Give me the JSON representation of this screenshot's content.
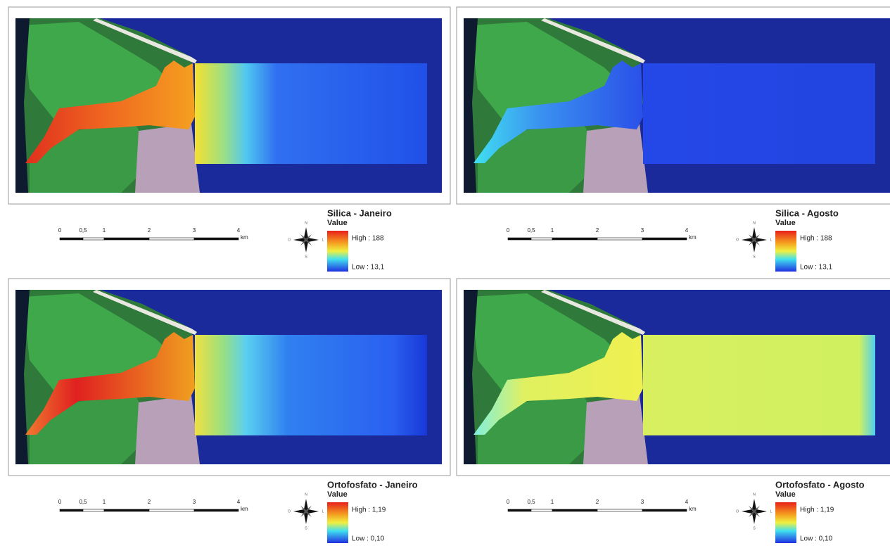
{
  "panels": [
    {
      "title": "Silica - Janeiro",
      "legend_label": "Value",
      "high": "High : 188",
      "low": "Low : 13,1",
      "scale_labels": [
        "0",
        "0,5",
        "1",
        "2",
        "3",
        "4"
      ],
      "scale_unit": "km",
      "compass": [
        "N",
        "S",
        "L",
        "O"
      ]
    },
    {
      "title": "Silica - Agosto",
      "legend_label": "Value",
      "high": "High : 188",
      "low": "Low : 13,1",
      "scale_labels": [
        "0",
        "0,5",
        "1",
        "2",
        "3",
        "4"
      ],
      "scale_unit": "km",
      "compass": [
        "N",
        "S",
        "L",
        "O"
      ]
    },
    {
      "title": "Ortofosfato - Janeiro",
      "legend_label": "Value",
      "high": "High : 1,19",
      "low": "Low : 0,10",
      "scale_labels": [
        "0",
        "0,5",
        "1",
        "2",
        "3",
        "4"
      ],
      "scale_unit": "km",
      "compass": [
        "N",
        "S",
        "L",
        "O"
      ]
    },
    {
      "title": "Ortofosfato - Agosto",
      "legend_label": "Value",
      "high": "High : 1,19",
      "low": "Low : 0,10",
      "scale_labels": [
        "0",
        "0,5",
        "1",
        "2",
        "3",
        "4"
      ],
      "scale_unit": "km",
      "compass": [
        "N",
        "S",
        "L",
        "O"
      ]
    }
  ]
}
